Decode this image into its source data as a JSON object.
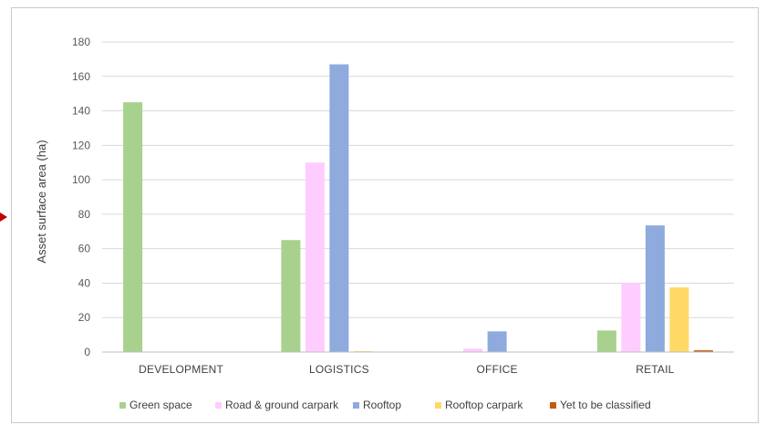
{
  "chart_data": {
    "type": "bar",
    "title": "",
    "xlabel": "",
    "ylabel": "Asset surface area (ha)",
    "ylim": [
      0,
      180
    ],
    "yticks": [
      0,
      20,
      40,
      60,
      80,
      100,
      120,
      140,
      160,
      180
    ],
    "grid": true,
    "legend": "bottom",
    "categories": [
      "DEVELOPMENT",
      "LOGISTICS",
      "OFFICE",
      "RETAIL"
    ],
    "series": [
      {
        "name": "Green space",
        "color": "#a9d18e",
        "values": [
          145,
          65,
          0,
          12.5
        ]
      },
      {
        "name": "Road & ground carpark",
        "color": "#ffccff",
        "values": [
          0,
          110,
          2,
          40
        ]
      },
      {
        "name": "Rooftop",
        "color": "#8faadc",
        "values": [
          0,
          167,
          12,
          73.5
        ]
      },
      {
        "name": "Rooftop carpark",
        "color": "#ffd966",
        "values": [
          0,
          0.5,
          0,
          37.5
        ]
      },
      {
        "name": "Yet to be classified",
        "color": "#c55a11",
        "values": [
          0,
          0,
          0,
          1
        ]
      }
    ]
  }
}
